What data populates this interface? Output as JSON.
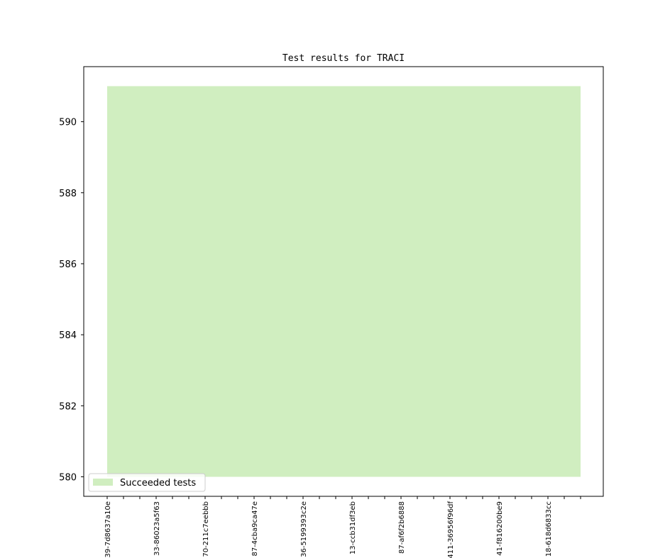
{
  "chart_data": {
    "type": "area",
    "title": "Test results for TRACI",
    "xlabel": "",
    "ylabel": "",
    "ylim": [
      579.45,
      591.55
    ],
    "yticks": [
      580,
      582,
      584,
      586,
      588,
      590
    ],
    "tick_count": 30,
    "labeled_tick_every": 3,
    "x_tick_labels": [
      "39-7d8637a10e",
      "33-86023a5f63",
      "70-211c7eebbb",
      "87-4cba9ca47e",
      "36-5199393c2e",
      "13-ccb31df3eb",
      "87-af6f2b6888",
      "411-36956f96df",
      "41-f816200be9",
      "18-618d6833cc"
    ],
    "baseline": 580,
    "series": [
      {
        "name": "Succeeded tests",
        "color": "#d0eec0",
        "values": [
          591,
          591,
          591,
          591,
          591,
          591,
          591,
          591,
          591,
          591,
          591,
          591,
          591,
          591,
          591,
          591,
          591,
          591,
          591,
          591,
          591,
          591,
          591,
          591,
          591,
          591,
          591,
          591,
          591,
          591
        ]
      }
    ],
    "grid": false,
    "legend": "lower-left"
  }
}
